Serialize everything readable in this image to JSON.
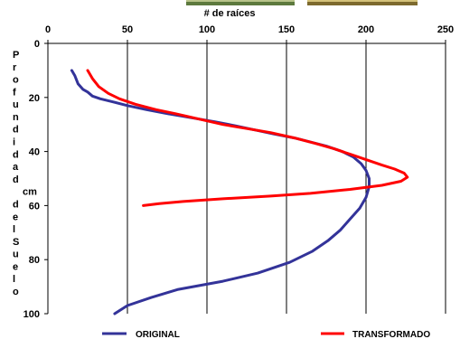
{
  "chart_data": {
    "type": "line",
    "xlabel": "# de raíces",
    "ylabel_letters": [
      "P",
      "r",
      "o",
      "f",
      "u",
      "n",
      "d",
      "i",
      "d",
      "a",
      "d",
      "cm",
      "d",
      "e",
      "l",
      "S",
      "u",
      "e",
      "l",
      "o"
    ],
    "xlim": [
      0,
      250
    ],
    "ylim": [
      0,
      100
    ],
    "y_inverted": true,
    "x_axis_position": "top",
    "x_ticks": [
      0,
      50,
      100,
      150,
      200,
      250
    ],
    "y_ticks": [
      0,
      20,
      40,
      60,
      80,
      100
    ],
    "grid": "vertical",
    "legend_position": "bottom",
    "series": [
      {
        "name": "ORIGINAL",
        "color": "#333399",
        "points": [
          [
            15,
            10
          ],
          [
            17,
            12
          ],
          [
            19,
            15
          ],
          [
            22,
            17
          ],
          [
            25,
            18
          ],
          [
            28,
            19.5
          ],
          [
            33,
            20.5
          ],
          [
            40,
            21.5
          ],
          [
            50,
            23
          ],
          [
            62,
            24.5
          ],
          [
            75,
            26
          ],
          [
            90,
            27.5
          ],
          [
            105,
            29
          ],
          [
            118,
            30.5
          ],
          [
            130,
            32
          ],
          [
            142,
            33.5
          ],
          [
            155,
            35
          ],
          [
            165,
            36.5
          ],
          [
            175,
            38
          ],
          [
            185,
            40
          ],
          [
            192,
            42
          ],
          [
            197,
            44.5
          ],
          [
            200,
            47
          ],
          [
            202,
            50
          ],
          [
            202,
            53
          ],
          [
            200,
            57
          ],
          [
            196,
            61
          ],
          [
            190,
            65
          ],
          [
            184,
            69
          ],
          [
            176,
            73
          ],
          [
            166,
            77
          ],
          [
            152,
            81
          ],
          [
            132,
            85
          ],
          [
            110,
            88
          ],
          [
            82,
            91
          ],
          [
            65,
            94
          ],
          [
            50,
            97
          ],
          [
            42,
            100
          ]
        ]
      },
      {
        "name": "TRANSFORMADO",
        "color": "#ff0000",
        "points": [
          [
            25,
            10
          ],
          [
            28,
            13
          ],
          [
            32,
            16
          ],
          [
            38,
            18.5
          ],
          [
            45,
            20.5
          ],
          [
            55,
            22.5
          ],
          [
            68,
            24.5
          ],
          [
            80,
            26
          ],
          [
            95,
            28
          ],
          [
            110,
            30
          ],
          [
            125,
            31.5
          ],
          [
            140,
            33
          ],
          [
            155,
            35
          ],
          [
            168,
            37
          ],
          [
            180,
            39
          ],
          [
            190,
            41
          ],
          [
            200,
            43
          ],
          [
            210,
            45
          ],
          [
            218,
            46.5
          ],
          [
            224,
            48
          ],
          [
            226,
            49.5
          ],
          [
            222,
            51
          ],
          [
            210,
            52.5
          ],
          [
            190,
            54
          ],
          [
            165,
            55.5
          ],
          [
            140,
            56.5
          ],
          [
            110,
            57.5
          ],
          [
            85,
            58.5
          ],
          [
            70,
            59.3
          ],
          [
            60,
            60
          ]
        ]
      }
    ]
  }
}
